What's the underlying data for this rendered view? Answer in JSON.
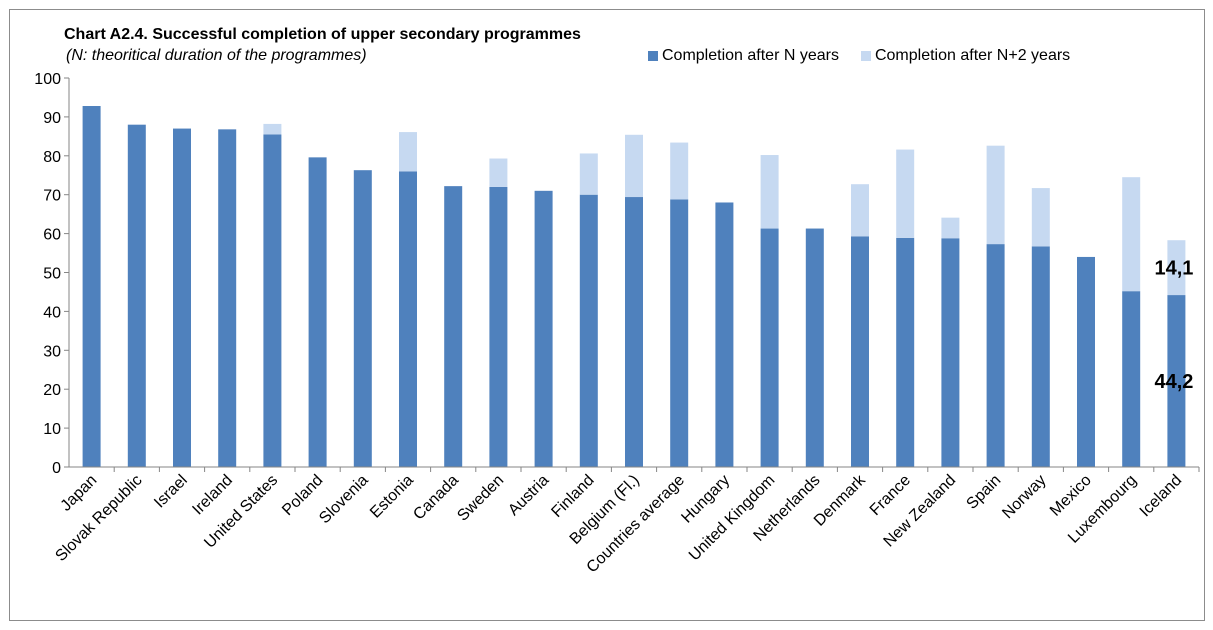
{
  "chart_data": {
    "type": "bar",
    "stacked": true,
    "title": "Chart A2.4. Successful completion of upper secondary programmes",
    "subtitle": "(N: theoritical duration of the programmes)",
    "legend_position": "top-right",
    "grid": false,
    "ylim": [
      0,
      100
    ],
    "yticks": [
      0,
      10,
      20,
      30,
      40,
      50,
      60,
      70,
      80,
      90,
      100
    ],
    "categories": [
      "Japan",
      "Slovak Republic",
      "Israel",
      "Ireland",
      "United States",
      "Poland",
      "Slovenia",
      "Estonia",
      "Canada",
      "Sweden",
      "Austria",
      "Finland",
      "Belgium (Fl.)",
      "Countries average",
      "Hungary",
      "United Kingdom",
      "Netherlands",
      "Denmark",
      "France",
      "New Zealand",
      "Spain",
      "Norway",
      "Mexico",
      "Luxembourg",
      "Iceland"
    ],
    "series": [
      {
        "name": "Completion after N years",
        "color": "#4f81bd",
        "values": [
          92.8,
          88.0,
          87.0,
          86.8,
          85.5,
          79.6,
          76.3,
          76.0,
          72.2,
          72.0,
          71.0,
          70.0,
          69.4,
          68.8,
          68.0,
          61.3,
          61.3,
          59.3,
          58.9,
          58.8,
          57.3,
          56.7,
          54.0,
          45.2,
          44.2
        ]
      },
      {
        "name": "Completion after N+2 years",
        "color": "#c6d9f1",
        "values": [
          0,
          0,
          0,
          0,
          2.7,
          0,
          0,
          10.1,
          0,
          7.3,
          0,
          10.6,
          16.0,
          14.6,
          0,
          18.9,
          0,
          13.4,
          22.7,
          5.3,
          25.3,
          15.0,
          0,
          29.3,
          14.1
        ]
      }
    ],
    "annotations": [
      {
        "category": "Iceland",
        "series": "Completion after N+2 years",
        "label": "14,1"
      },
      {
        "category": "Iceland",
        "series": "Completion after N years",
        "label": "44,2"
      }
    ]
  }
}
